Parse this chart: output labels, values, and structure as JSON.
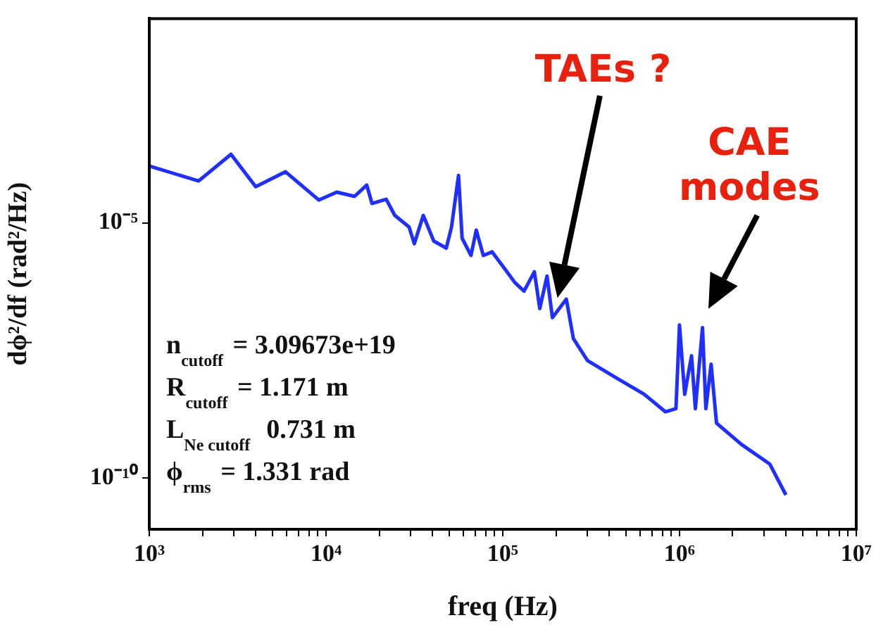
{
  "chart_data": {
    "type": "line",
    "xlabel": "freq (Hz)",
    "ylabel": "dϕ²/df (rad²/Hz)",
    "log": "xy",
    "grid": false,
    "legend": false,
    "marker": "none",
    "line_style": "solid",
    "xlim": [
      1000,
      10000000
    ],
    "ylim": [
      1e-11,
      0.1
    ],
    "xticks": [
      {
        "value": 1000,
        "label": "10³"
      },
      {
        "value": 2000,
        "label": null
      },
      {
        "value": 3000,
        "label": null
      },
      {
        "value": 4000,
        "label": null
      },
      {
        "value": 5000,
        "label": null
      },
      {
        "value": 6000,
        "label": null
      },
      {
        "value": 7000,
        "label": null
      },
      {
        "value": 8000,
        "label": null
      },
      {
        "value": 9000,
        "label": null
      },
      {
        "value": 10000,
        "label": "10⁴"
      },
      {
        "value": 20000,
        "label": null
      },
      {
        "value": 30000,
        "label": null
      },
      {
        "value": 40000,
        "label": null
      },
      {
        "value": 50000,
        "label": null
      },
      {
        "value": 60000,
        "label": null
      },
      {
        "value": 70000,
        "label": null
      },
      {
        "value": 80000,
        "label": null
      },
      {
        "value": 90000,
        "label": null
      },
      {
        "value": 100000,
        "label": "10⁵"
      },
      {
        "value": 200000,
        "label": null
      },
      {
        "value": 300000,
        "label": null
      },
      {
        "value": 400000,
        "label": null
      },
      {
        "value": 500000,
        "label": null
      },
      {
        "value": 600000,
        "label": null
      },
      {
        "value": 700000,
        "label": null
      },
      {
        "value": 800000,
        "label": null
      },
      {
        "value": 900000,
        "label": null
      },
      {
        "value": 1000000,
        "label": "10⁶"
      },
      {
        "value": 2000000,
        "label": null
      },
      {
        "value": 3000000,
        "label": null
      },
      {
        "value": 4000000,
        "label": null
      },
      {
        "value": 5000000,
        "label": null
      },
      {
        "value": 6000000,
        "label": null
      },
      {
        "value": 7000000,
        "label": null
      },
      {
        "value": 8000000,
        "label": null
      },
      {
        "value": 9000000,
        "label": null
      },
      {
        "value": 10000000,
        "label": "10⁷"
      }
    ],
    "yticks": [
      {
        "value": 1e-10,
        "label": "10⁻¹⁰"
      },
      {
        "value": 1e-05,
        "label": "10⁻⁵"
      }
    ],
    "series": [
      {
        "color": "#1f2fff",
        "x": [
          1000,
          1900,
          2900,
          4000,
          5900,
          9100,
          11500,
          14500,
          17000,
          18200,
          21900,
          24500,
          29500,
          31600,
          35500,
          40700,
          47900,
          51300,
          56200,
          58900,
          66100,
          70800,
          77600,
          87100,
          102000,
          117000,
          132000,
          151000,
          162000,
          178000,
          191000,
          229000,
          251000,
          302000,
          437000,
          631000,
          832000,
          955000,
          1000000,
          1070000,
          1170000,
          1230000,
          1350000,
          1410000,
          1510000,
          1620000,
          2240000,
          3240000,
          4000000
        ],
        "values": [
          0.00013,
          6.6e-05,
          0.00022,
          5.1e-05,
          0.0001,
          2.8e-05,
          4e-05,
          3.3e-05,
          5.5e-05,
          2.4e-05,
          2.9e-05,
          1.4e-05,
          8.3e-06,
          3.9e-06,
          1.4e-05,
          4.4e-06,
          3.2e-06,
          8.3e-06,
          8.5e-05,
          5e-06,
          2.3e-06,
          7.2e-06,
          2.3e-06,
          2.7e-06,
          1.3e-06,
          6.8e-07,
          4.6e-07,
          1.1e-06,
          2.1e-07,
          9.1e-07,
          1.4e-07,
          3.2e-07,
          5.4e-08,
          2e-08,
          9.3e-09,
          4.4e-09,
          2e-09,
          2.3e-09,
          1e-07,
          4.4e-09,
          2.5e-08,
          2.3e-09,
          8.9e-08,
          2.3e-09,
          1.7e-08,
          1.2e-09,
          4.6e-10,
          1.9e-10,
          4.7e-11
        ]
      }
    ],
    "annotations": [
      "TAEs ?",
      "CAE modes",
      "n$_{cutoff}$ = 3.09673e+19",
      "R$_{cutoff}$ = 1.171 m",
      "L$_{Ne cutoff}$  0.731 m",
      "ϕ$_{rms}$ = 1.331 rad"
    ]
  }
}
